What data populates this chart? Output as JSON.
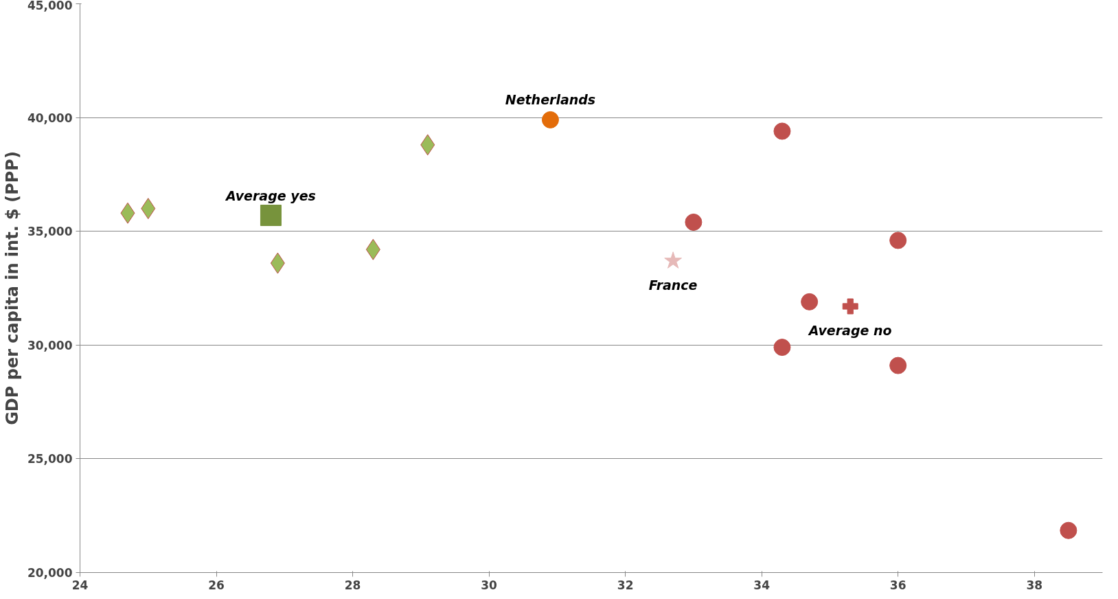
{
  "chart_data": {
    "type": "scatter",
    "ylabel": "GDP per capita in int. $ (PPP)",
    "xlim": [
      24,
      39
    ],
    "xticks": [
      24,
      26,
      28,
      30,
      32,
      34,
      36,
      38
    ],
    "ylim": [
      20000,
      45000
    ],
    "yticks": [
      {
        "value": 20000,
        "label": "20,000"
      },
      {
        "value": 25000,
        "label": "25,000"
      },
      {
        "value": 30000,
        "label": "30,000"
      },
      {
        "value": 35000,
        "label": "35,000"
      },
      {
        "value": 40000,
        "label": "40,000"
      },
      {
        "value": 45000,
        "label": "45,000"
      }
    ],
    "grid": "y",
    "series": [
      {
        "color": "#9bbb59",
        "marker": "diamond",
        "x": [
          24.7,
          25.0,
          26.9,
          28.3,
          29.1
        ],
        "values": [
          35800,
          36000,
          33600,
          34200,
          38800
        ]
      },
      {
        "name": "Average yes",
        "color": "#77933c",
        "marker": "square",
        "x": [
          26.8
        ],
        "values": [
          35700
        ]
      },
      {
        "name": "Netherlands",
        "color": "#e36c09",
        "marker": "circle",
        "x": [
          30.9
        ],
        "values": [
          39900
        ]
      },
      {
        "name": "France",
        "color": "#e6b9b8",
        "marker": "star",
        "x": [
          32.7
        ],
        "values": [
          33700
        ]
      },
      {
        "color": "#c0504d",
        "marker": "circle",
        "x": [
          34.3,
          33.0,
          36.0,
          34.7,
          34.3,
          36.0,
          38.5
        ],
        "values": [
          39400,
          35400,
          34600,
          31900,
          29900,
          29100,
          21850
        ]
      },
      {
        "name": "Average no",
        "color": "#c0504d",
        "marker": "cross",
        "x": [
          35.3
        ],
        "values": [
          31700
        ]
      }
    ]
  }
}
